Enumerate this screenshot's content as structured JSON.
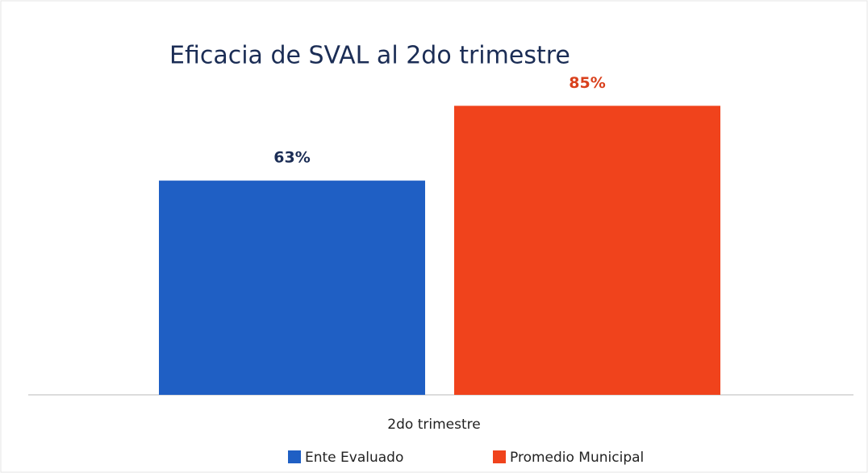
{
  "chart_data": {
    "type": "bar",
    "title": "Eficacia de SVAL al 2do trimestre",
    "categories": [
      "2do trimestre"
    ],
    "series": [
      {
        "name": "Ente Evaluado",
        "color": "#1f5fc4",
        "label_color": "#1b2d55",
        "values": [
          63
        ],
        "value_labels": [
          "63%"
        ]
      },
      {
        "name": "Promedio Municipal",
        "color": "#f0431c",
        "label_color": "#d9401c",
        "values": [
          85
        ],
        "value_labels": [
          "85%"
        ]
      }
    ],
    "ylim": [
      0,
      100
    ],
    "legend": "bottom"
  }
}
